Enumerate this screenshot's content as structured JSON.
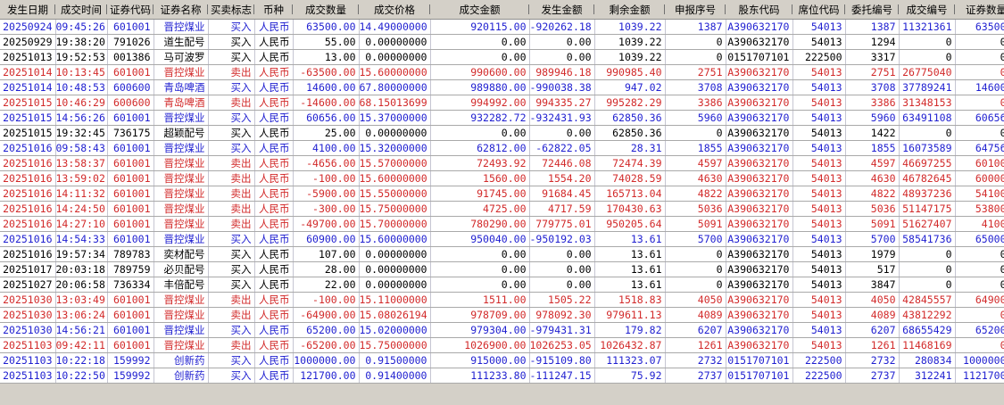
{
  "app": {
    "name": "trade-history-grid",
    "colors": {
      "buy_text": "#1f1fd0",
      "sell_text": "#d22a2a",
      "neutral_text": "#000000",
      "header_bg": "#d4d0c8",
      "row_bg": "#ffffff",
      "grid_line_h": "#a9a9a9",
      "grid_line_v": "#c6c6d2"
    }
  },
  "table": {
    "columns": [
      {
        "id": "occur-date",
        "label": "发生日期"
      },
      {
        "id": "deal-time",
        "label": "成交时间"
      },
      {
        "id": "security-code",
        "label": "证券代码"
      },
      {
        "id": "security-name",
        "label": "证券名称"
      },
      {
        "id": "buy-sell-flag",
        "label": "买卖标志"
      },
      {
        "id": "currency",
        "label": "币种"
      },
      {
        "id": "deal-qty",
        "label": "成交数量"
      },
      {
        "id": "deal-price",
        "label": "成交价格"
      },
      {
        "id": "deal-amount",
        "label": "成交金额"
      },
      {
        "id": "occur-amount",
        "label": "发生金额"
      },
      {
        "id": "balance",
        "label": "剩余金额"
      },
      {
        "id": "declare-seq",
        "label": "申报序号"
      },
      {
        "id": "holder-code",
        "label": "股东代码"
      },
      {
        "id": "seat-code",
        "label": "席位代码"
      },
      {
        "id": "order-no",
        "label": "委托编号"
      },
      {
        "id": "deal-no",
        "label": "成交编号"
      },
      {
        "id": "security-qty",
        "label": "证券数量"
      }
    ],
    "rows": [
      {
        "type": "buy",
        "cells": [
          "20250924",
          "09:45:26",
          "601001",
          "晋控煤业",
          "买入",
          "人民币",
          "63500.00",
          "14.49000000",
          "920115.00",
          "-920262.18",
          "1039.22",
          "1387",
          "A390632170",
          "54013",
          "1387",
          "11321361",
          "63500"
        ]
      },
      {
        "type": "neutral",
        "cells": [
          "20250929",
          "19:38:20",
          "791026",
          "道生配号",
          "买入",
          "人民币",
          "55.00",
          "0.00000000",
          "0.00",
          "0.00",
          "1039.22",
          "0",
          "A390632170",
          "54013",
          "1294",
          "0",
          "0"
        ]
      },
      {
        "type": "neutral",
        "cells": [
          "20251013",
          "19:52:53",
          "001386",
          "马可波罗",
          "买入",
          "人民币",
          "13.00",
          "0.00000000",
          "0.00",
          "0.00",
          "1039.22",
          "0",
          "0151707101",
          "222500",
          "3317",
          "0",
          "0"
        ]
      },
      {
        "type": "sell",
        "cells": [
          "20251014",
          "10:13:45",
          "601001",
          "晋控煤业",
          "卖出",
          "人民币",
          "-63500.00",
          "15.60000000",
          "990600.00",
          "989946.18",
          "990985.40",
          "2751",
          "A390632170",
          "54013",
          "2751",
          "26775040",
          "0"
        ]
      },
      {
        "type": "buy",
        "cells": [
          "20251014",
          "10:48:53",
          "600600",
          "青岛啤酒",
          "买入",
          "人民币",
          "14600.00",
          "67.80000000",
          "989880.00",
          "-990038.38",
          "947.02",
          "3708",
          "A390632170",
          "54013",
          "3708",
          "37789241",
          "14600"
        ]
      },
      {
        "type": "sell",
        "cells": [
          "20251015",
          "10:46:29",
          "600600",
          "青岛啤酒",
          "卖出",
          "人民币",
          "-14600.00",
          "68.15013699",
          "994992.00",
          "994335.27",
          "995282.29",
          "3386",
          "A390632170",
          "54013",
          "3386",
          "31348153",
          "0"
        ]
      },
      {
        "type": "buy",
        "cells": [
          "20251015",
          "14:56:26",
          "601001",
          "晋控煤业",
          "买入",
          "人民币",
          "60656.00",
          "15.37000000",
          "932282.72",
          "-932431.93",
          "62850.36",
          "5960",
          "A390632170",
          "54013",
          "5960",
          "63491108",
          "60656"
        ]
      },
      {
        "type": "neutral",
        "cells": [
          "20251015",
          "19:32:45",
          "736175",
          "超颖配号",
          "买入",
          "人民币",
          "25.00",
          "0.00000000",
          "0.00",
          "0.00",
          "62850.36",
          "0",
          "A390632170",
          "54013",
          "1422",
          "0",
          "0"
        ]
      },
      {
        "type": "buy",
        "cells": [
          "20251016",
          "09:58:43",
          "601001",
          "晋控煤业",
          "买入",
          "人民币",
          "4100.00",
          "15.32000000",
          "62812.00",
          "-62822.05",
          "28.31",
          "1855",
          "A390632170",
          "54013",
          "1855",
          "16073589",
          "64756"
        ]
      },
      {
        "type": "sell",
        "cells": [
          "20251016",
          "13:58:37",
          "601001",
          "晋控煤业",
          "卖出",
          "人民币",
          "-4656.00",
          "15.57000000",
          "72493.92",
          "72446.08",
          "72474.39",
          "4597",
          "A390632170",
          "54013",
          "4597",
          "46697255",
          "60100"
        ]
      },
      {
        "type": "sell",
        "cells": [
          "20251016",
          "13:59:02",
          "601001",
          "晋控煤业",
          "卖出",
          "人民币",
          "-100.00",
          "15.60000000",
          "1560.00",
          "1554.20",
          "74028.59",
          "4630",
          "A390632170",
          "54013",
          "4630",
          "46782645",
          "60000"
        ]
      },
      {
        "type": "sell",
        "cells": [
          "20251016",
          "14:11:32",
          "601001",
          "晋控煤业",
          "卖出",
          "人民币",
          "-5900.00",
          "15.55000000",
          "91745.00",
          "91684.45",
          "165713.04",
          "4822",
          "A390632170",
          "54013",
          "4822",
          "48937236",
          "54100"
        ]
      },
      {
        "type": "sell",
        "cells": [
          "20251016",
          "14:24:50",
          "601001",
          "晋控煤业",
          "卖出",
          "人民币",
          "-300.00",
          "15.75000000",
          "4725.00",
          "4717.59",
          "170430.63",
          "5036",
          "A390632170",
          "54013",
          "5036",
          "51147175",
          "53800"
        ]
      },
      {
        "type": "sell",
        "cells": [
          "20251016",
          "14:27:10",
          "601001",
          "晋控煤业",
          "卖出",
          "人民币",
          "-49700.00",
          "15.70000000",
          "780290.00",
          "779775.01",
          "950205.64",
          "5091",
          "A390632170",
          "54013",
          "5091",
          "51627407",
          "4100"
        ]
      },
      {
        "type": "buy",
        "cells": [
          "20251016",
          "14:54:33",
          "601001",
          "晋控煤业",
          "买入",
          "人民币",
          "60900.00",
          "15.60000000",
          "950040.00",
          "-950192.03",
          "13.61",
          "5700",
          "A390632170",
          "54013",
          "5700",
          "58541736",
          "65000"
        ]
      },
      {
        "type": "neutral",
        "cells": [
          "20251016",
          "19:57:34",
          "789783",
          "奕材配号",
          "买入",
          "人民币",
          "107.00",
          "0.00000000",
          "0.00",
          "0.00",
          "13.61",
          "0",
          "A390632170",
          "54013",
          "1979",
          "0",
          "0"
        ]
      },
      {
        "type": "neutral",
        "cells": [
          "20251017",
          "20:03:18",
          "789759",
          "必贝配号",
          "买入",
          "人民币",
          "28.00",
          "0.00000000",
          "0.00",
          "0.00",
          "13.61",
          "0",
          "A390632170",
          "54013",
          "517",
          "0",
          "0"
        ]
      },
      {
        "type": "neutral",
        "cells": [
          "20251027",
          "20:06:58",
          "736334",
          "丰倍配号",
          "买入",
          "人民币",
          "22.00",
          "0.00000000",
          "0.00",
          "0.00",
          "13.61",
          "0",
          "A390632170",
          "54013",
          "3847",
          "0",
          "0"
        ]
      },
      {
        "type": "sell",
        "cells": [
          "20251030",
          "13:03:49",
          "601001",
          "晋控煤业",
          "卖出",
          "人民币",
          "-100.00",
          "15.11000000",
          "1511.00",
          "1505.22",
          "1518.83",
          "4050",
          "A390632170",
          "54013",
          "4050",
          "42845557",
          "64900"
        ]
      },
      {
        "type": "sell",
        "cells": [
          "20251030",
          "13:06:24",
          "601001",
          "晋控煤业",
          "卖出",
          "人民币",
          "-64900.00",
          "15.08026194",
          "978709.00",
          "978092.30",
          "979611.13",
          "4089",
          "A390632170",
          "54013",
          "4089",
          "43812292",
          "0"
        ]
      },
      {
        "type": "buy",
        "cells": [
          "20251030",
          "14:56:21",
          "601001",
          "晋控煤业",
          "买入",
          "人民币",
          "65200.00",
          "15.02000000",
          "979304.00",
          "-979431.31",
          "179.82",
          "6207",
          "A390632170",
          "54013",
          "6207",
          "68655429",
          "65200"
        ]
      },
      {
        "type": "sell",
        "cells": [
          "20251103",
          "09:42:11",
          "601001",
          "晋控煤业",
          "卖出",
          "人民币",
          "-65200.00",
          "15.75000000",
          "1026900.00",
          "1026253.05",
          "1026432.87",
          "1261",
          "A390632170",
          "54013",
          "1261",
          "11468169",
          "0"
        ]
      },
      {
        "type": "buy",
        "cells": [
          "20251103",
          "10:22:18",
          "159992",
          "创新药",
          "买入",
          "人民币",
          "1000000.00",
          "0.91500000",
          "915000.00",
          "-915109.80",
          "111323.07",
          "2732",
          "0151707101",
          "222500",
          "2732",
          "280834",
          "1000000"
        ]
      },
      {
        "type": "buy",
        "cells": [
          "20251103",
          "10:22:50",
          "159992",
          "创新药",
          "买入",
          "人民币",
          "121700.00",
          "0.91400000",
          "111233.80",
          "-111247.15",
          "75.92",
          "2737",
          "0151707101",
          "222500",
          "2737",
          "312241",
          "1121700"
        ]
      }
    ]
  }
}
